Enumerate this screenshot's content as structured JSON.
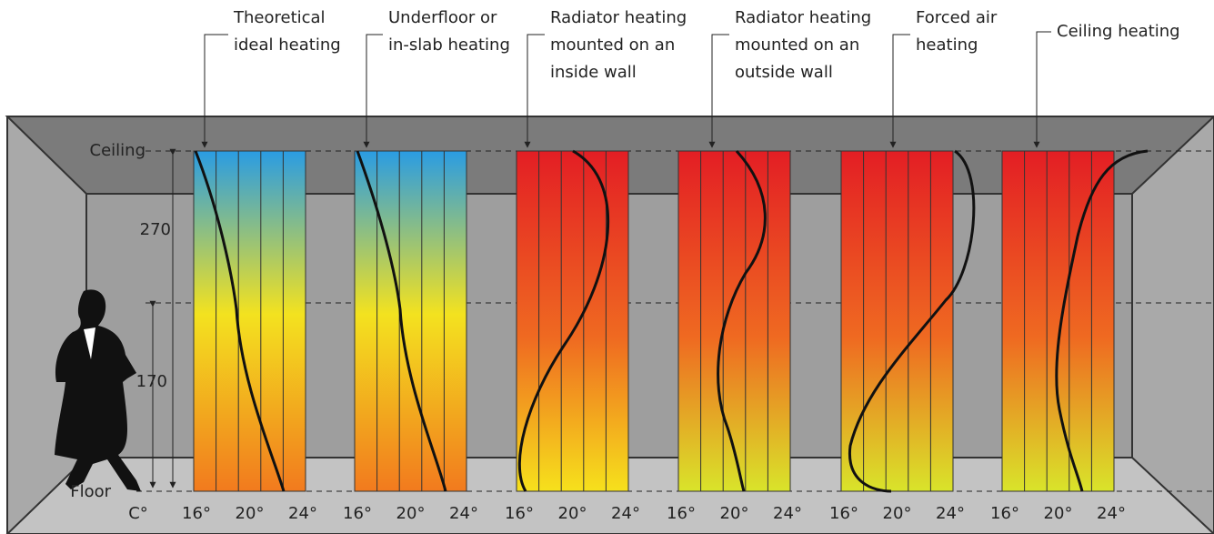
{
  "axis": {
    "ceiling": "Ceiling",
    "floor": "Floor",
    "unit": "C°",
    "heights": [
      "270",
      "170"
    ]
  },
  "panels": [
    {
      "label_lines": [
        "Theoretical",
        "ideal heating"
      ],
      "ticks": [
        "16°",
        "20°",
        "24°"
      ]
    },
    {
      "label_lines": [
        "Underfloor or",
        "in-slab heating"
      ],
      "ticks": [
        "16°",
        "20°",
        "24°"
      ]
    },
    {
      "label_lines": [
        "Radiator heating",
        "mounted on an",
        "inside wall"
      ],
      "ticks": [
        "16°",
        "20°",
        "24°"
      ]
    },
    {
      "label_lines": [
        "Radiator heating",
        "mounted on an",
        "outside wall"
      ],
      "ticks": [
        "16°",
        "20°",
        "24°"
      ]
    },
    {
      "label_lines": [
        "Forced air",
        "heating"
      ],
      "ticks": [
        "16°",
        "20°",
        "24°"
      ]
    },
    {
      "label_lines": [
        "Ceiling heating"
      ],
      "ticks": [
        "16°",
        "20°",
        "24°"
      ]
    }
  ]
}
